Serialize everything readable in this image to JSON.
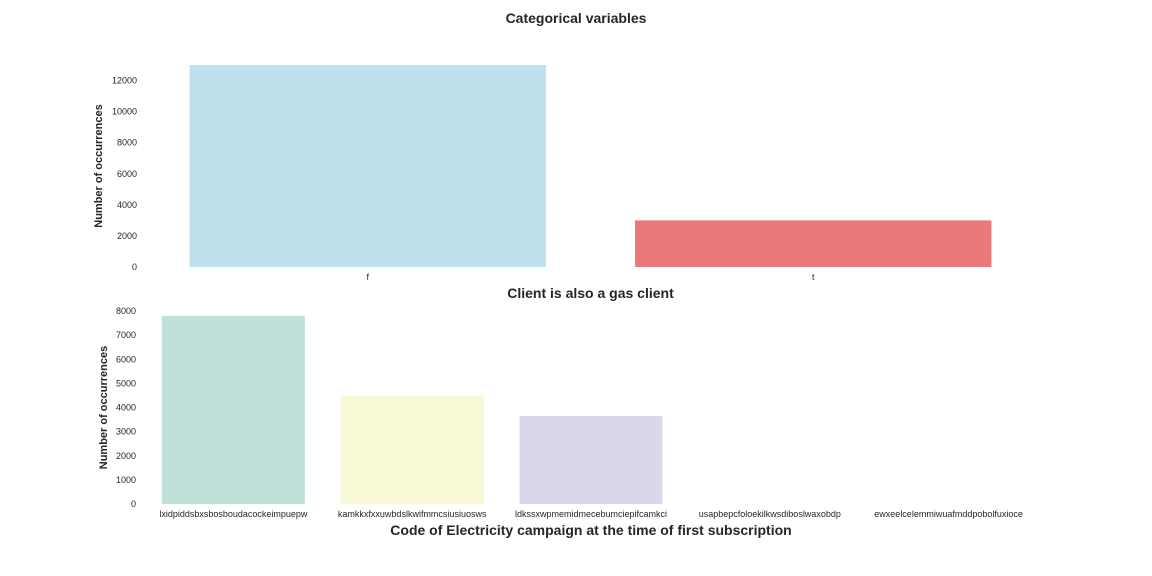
{
  "figure": {
    "suptitle": "Categorical variables"
  },
  "chart_data": [
    {
      "type": "bar",
      "title": "",
      "xlabel": "Client is also a gas client",
      "ylabel": "Number of occurrences",
      "categories": [
        "f",
        "t"
      ],
      "values": [
        13000,
        3000
      ],
      "colors": [
        "#bfe0ec",
        "#ea7878"
      ],
      "ylim": [
        0,
        13000
      ],
      "yticks": [
        0,
        2000,
        4000,
        6000,
        8000,
        10000,
        12000
      ],
      "grid": false,
      "legend": "none"
    },
    {
      "type": "bar",
      "title": "",
      "xlabel": "Code of Electricity campaign at the time of first subscription",
      "ylabel": "Number of occurrences",
      "categories": [
        "lxidpiddsbxsbosboudacockeimpuepw",
        "kamkkxfxxuwbdslkwifmmcsiusiuosws",
        "ldkssxwpmemidmecebumciepifcamkci",
        "usapbepcfoloekilkwsdiboslwaxobdp",
        "ewxeelcelemmiwuafmddpobolfuxioce"
      ],
      "values": [
        7800,
        4500,
        3650,
        0,
        0
      ],
      "colors": [
        "#bfe1da",
        "#f8f8d6",
        "#d9d8e8",
        "#f4c1bc",
        "#c1d6e4"
      ],
      "ylim": [
        0,
        8000
      ],
      "yticks": [
        0,
        1000,
        2000,
        3000,
        4000,
        5000,
        6000,
        7000,
        8000
      ],
      "grid": false,
      "legend": "none"
    }
  ]
}
